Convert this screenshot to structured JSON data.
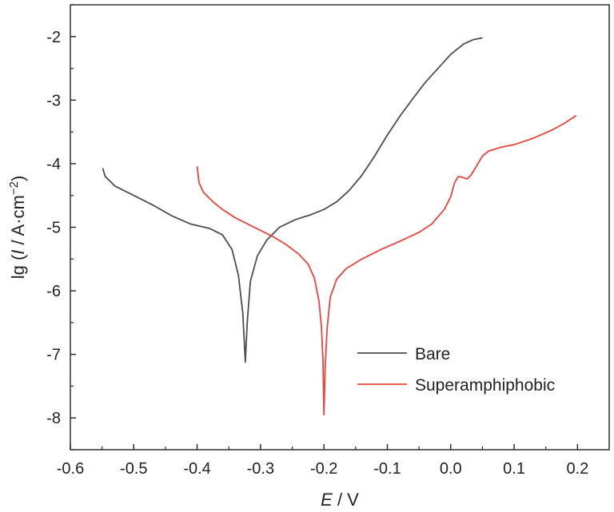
{
  "chart_data": {
    "type": "line",
    "xlabel_parts": [
      "E",
      " / V"
    ],
    "ylabel_parts": [
      "lg (",
      "I",
      " / A·cm",
      "−2",
      ")"
    ],
    "xlim": [
      -0.6,
      0.25
    ],
    "ylim": [
      -8.5,
      -1.5
    ],
    "xticks": [
      -0.6,
      -0.5,
      -0.4,
      -0.3,
      -0.2,
      -0.1,
      0.0,
      0.1,
      0.2
    ],
    "xtick_labels": [
      "-0.6",
      "-0.5",
      "-0.4",
      "-0.3",
      "-0.2",
      "-0.1",
      "0.0",
      "0.1",
      "0.2"
    ],
    "yticks": [
      -2,
      -3,
      -4,
      -5,
      -6,
      -7,
      -8
    ],
    "ytick_labels": [
      "-2",
      "-3",
      "-4",
      "-5",
      "-6",
      "-7",
      "-8"
    ],
    "grid": false,
    "legend_position": "lower-right",
    "series": [
      {
        "name": "Bare",
        "color": "#4d4d4d",
        "points": [
          [
            -0.549,
            -4.07
          ],
          [
            -0.545,
            -4.2
          ],
          [
            -0.53,
            -4.35
          ],
          [
            -0.5,
            -4.5
          ],
          [
            -0.47,
            -4.65
          ],
          [
            -0.44,
            -4.82
          ],
          [
            -0.41,
            -4.95
          ],
          [
            -0.38,
            -5.02
          ],
          [
            -0.36,
            -5.12
          ],
          [
            -0.345,
            -5.35
          ],
          [
            -0.335,
            -5.75
          ],
          [
            -0.328,
            -6.35
          ],
          [
            -0.324,
            -7.12
          ],
          [
            -0.321,
            -6.5
          ],
          [
            -0.316,
            -5.85
          ],
          [
            -0.305,
            -5.45
          ],
          [
            -0.29,
            -5.2
          ],
          [
            -0.27,
            -5.0
          ],
          [
            -0.245,
            -4.88
          ],
          [
            -0.22,
            -4.8
          ],
          [
            -0.2,
            -4.72
          ],
          [
            -0.18,
            -4.6
          ],
          [
            -0.16,
            -4.42
          ],
          [
            -0.14,
            -4.18
          ],
          [
            -0.12,
            -3.88
          ],
          [
            -0.1,
            -3.55
          ],
          [
            -0.08,
            -3.25
          ],
          [
            -0.06,
            -2.98
          ],
          [
            -0.04,
            -2.72
          ],
          [
            -0.02,
            -2.5
          ],
          [
            0.0,
            -2.28
          ],
          [
            0.02,
            -2.12
          ],
          [
            0.035,
            -2.05
          ],
          [
            0.05,
            -2.02
          ]
        ]
      },
      {
        "name": "Superamphiphobic",
        "color": "#e8443a",
        "points": [
          [
            -0.4,
            -4.04
          ],
          [
            -0.397,
            -4.3
          ],
          [
            -0.39,
            -4.45
          ],
          [
            -0.375,
            -4.6
          ],
          [
            -0.36,
            -4.72
          ],
          [
            -0.34,
            -4.85
          ],
          [
            -0.32,
            -4.95
          ],
          [
            -0.3,
            -5.05
          ],
          [
            -0.28,
            -5.15
          ],
          [
            -0.26,
            -5.27
          ],
          [
            -0.24,
            -5.42
          ],
          [
            -0.225,
            -5.58
          ],
          [
            -0.215,
            -5.8
          ],
          [
            -0.208,
            -6.15
          ],
          [
            -0.204,
            -6.55
          ],
          [
            -0.2015,
            -7.1
          ],
          [
            -0.2,
            -7.95
          ],
          [
            -0.198,
            -7.2
          ],
          [
            -0.195,
            -6.6
          ],
          [
            -0.19,
            -6.1
          ],
          [
            -0.18,
            -5.82
          ],
          [
            -0.165,
            -5.65
          ],
          [
            -0.14,
            -5.5
          ],
          [
            -0.11,
            -5.35
          ],
          [
            -0.08,
            -5.22
          ],
          [
            -0.05,
            -5.08
          ],
          [
            -0.03,
            -4.95
          ],
          [
            -0.01,
            -4.72
          ],
          [
            0.0,
            -4.52
          ],
          [
            0.006,
            -4.3
          ],
          [
            0.012,
            -4.2
          ],
          [
            0.02,
            -4.22
          ],
          [
            0.026,
            -4.24
          ],
          [
            0.032,
            -4.18
          ],
          [
            0.04,
            -4.05
          ],
          [
            0.05,
            -3.88
          ],
          [
            0.06,
            -3.8
          ],
          [
            0.08,
            -3.74
          ],
          [
            0.1,
            -3.7
          ],
          [
            0.13,
            -3.6
          ],
          [
            0.16,
            -3.47
          ],
          [
            0.18,
            -3.36
          ],
          [
            0.198,
            -3.24
          ]
        ]
      }
    ]
  }
}
